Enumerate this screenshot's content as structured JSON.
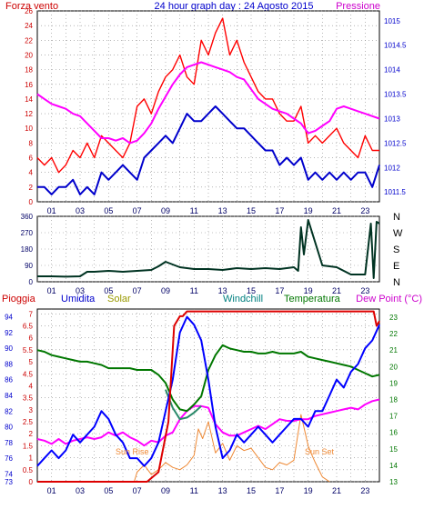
{
  "header": {
    "left_title": "Forza vento",
    "center_title": "24 hour graph day : 24 Agosto 2015",
    "right_title": "Pressione"
  },
  "bottom_header": {
    "pioggia": "Pioggia",
    "umidita": "Umidita",
    "solar": "Solar",
    "windchill": "Windchill",
    "temperatura": "Temperatura",
    "dewpoint": "Dew Point (°C)"
  },
  "annotations": {
    "sunrise": "Sun Rise",
    "sunset": "Sun Set"
  },
  "colors": {
    "wind": "#ff0000",
    "wind_avg": "#0000cc",
    "pressure": "#ff00ff",
    "direction": "#003322",
    "rain": "#dd0000",
    "humidity": "#0000ff",
    "solar": "#ee8833",
    "temperature": "#007700",
    "windchill": "#2a8a6a",
    "dewpoint": "#ff00ff",
    "grid": "#8c8c8c",
    "axis_red": "#cc0000",
    "axis_blue": "#0000cc",
    "axis_green": "#007700",
    "axis_teal": "#008080"
  },
  "chart_data": [
    {
      "type": "line",
      "name": "wind-pressure",
      "x_ticks": [
        "01",
        "03",
        "05",
        "07",
        "09",
        "11",
        "13",
        "15",
        "17",
        "19",
        "21",
        "23"
      ],
      "y_left_ticks": [
        "0",
        "2",
        "4",
        "6",
        "8",
        "10",
        "12",
        "14",
        "16",
        "18",
        "20",
        "22",
        "24",
        "26"
      ],
      "y_left_range": [
        0,
        26
      ],
      "y_right_ticks": [
        "1011.5",
        "1012",
        "1012.5",
        "1013",
        "1013.5",
        "1014",
        "1014.5",
        "1015"
      ],
      "y_right_range": [
        1011.3,
        1015.2
      ],
      "series": [
        {
          "x": [
            0,
            0.5,
            1,
            1.5,
            2,
            2.5,
            3,
            3.5,
            4,
            4.5,
            5,
            5.5,
            6,
            6.5,
            7,
            7.5,
            8,
            8.5,
            9,
            9.5,
            10,
            10.5,
            11,
            11.5,
            12,
            12.5,
            13,
            13.5,
            14,
            14.5,
            15,
            15.5,
            16,
            16.5,
            17,
            17.5,
            18,
            18.5,
            19,
            19.5,
            20,
            20.5,
            21,
            21.5,
            22,
            22.5,
            23,
            23.5,
            24
          ],
          "values": [
            6,
            5,
            6,
            4,
            5,
            7,
            6,
            8,
            6,
            9,
            8,
            7,
            6,
            8,
            13,
            14,
            12,
            15,
            17,
            18,
            20,
            17,
            16,
            22,
            20,
            23,
            25,
            20,
            22,
            19,
            17,
            15,
            14,
            14,
            12,
            11,
            11,
            13,
            8,
            9,
            8,
            9,
            10,
            8,
            7,
            6,
            9,
            7,
            7
          ]
        },
        {
          "x": [
            0,
            0.5,
            1,
            1.5,
            2,
            2.5,
            3,
            3.5,
            4,
            4.5,
            5,
            5.5,
            6,
            6.5,
            7,
            7.5,
            8,
            8.5,
            9,
            9.5,
            10,
            10.5,
            11,
            11.5,
            12,
            12.5,
            13,
            13.5,
            14,
            14.5,
            15,
            15.5,
            16,
            16.5,
            17,
            17.5,
            18,
            18.5,
            19,
            19.5,
            20,
            20.5,
            21,
            21.5,
            22,
            22.5,
            23,
            23.5,
            24
          ],
          "values": [
            2,
            2,
            1,
            2,
            2,
            3,
            1,
            2,
            1,
            4,
            3,
            4,
            5,
            4,
            3,
            6,
            7,
            8,
            9,
            8,
            10,
            12,
            11,
            11,
            12,
            13,
            12,
            11,
            10,
            10,
            9,
            8,
            7,
            7,
            5,
            6,
            5,
            6,
            3,
            4,
            3,
            4,
            3,
            4,
            3,
            4,
            4,
            2,
            5
          ]
        },
        {
          "x": [
            0,
            0.5,
            1,
            1.5,
            2,
            2.5,
            3,
            3.5,
            4,
            4.5,
            5,
            5.5,
            6,
            6.5,
            7,
            7.5,
            8,
            8.5,
            9,
            9.5,
            10,
            10.5,
            11,
            11.5,
            12,
            12.5,
            13,
            13.5,
            14,
            14.5,
            15,
            15.5,
            16,
            16.5,
            17,
            17.5,
            18,
            18.5,
            19,
            19.5,
            20,
            20.5,
            21,
            21.5,
            22,
            22.5,
            23,
            23.5,
            24
          ],
          "values": [
            1013.5,
            1013.4,
            1013.3,
            1013.25,
            1013.2,
            1013.1,
            1013.05,
            1012.9,
            1012.75,
            1012.6,
            1012.6,
            1012.55,
            1012.6,
            1012.5,
            1012.55,
            1012.7,
            1012.9,
            1013.2,
            1013.45,
            1013.7,
            1013.9,
            1014.05,
            1014.1,
            1014.15,
            1014.1,
            1014.05,
            1014.0,
            1013.95,
            1013.85,
            1013.8,
            1013.6,
            1013.4,
            1013.3,
            1013.2,
            1013.15,
            1013.1,
            1013.0,
            1012.9,
            1012.7,
            1012.75,
            1012.85,
            1012.95,
            1013.2,
            1013.25,
            1013.2,
            1013.15,
            1013.1,
            1013.05,
            1013.0
          ]
        }
      ]
    },
    {
      "type": "line",
      "name": "wind-direction",
      "x_ticks": [
        "01",
        "03",
        "05",
        "07",
        "09",
        "11",
        "13",
        "15",
        "17",
        "19",
        "21",
        "23"
      ],
      "y_ticks": [
        "0",
        "90",
        "180",
        "270",
        "360"
      ],
      "y_range": [
        0,
        360
      ],
      "y_right_labels": [
        "N",
        "W",
        "S",
        "E",
        "N"
      ],
      "series": [
        {
          "x": [
            0,
            1,
            2,
            3,
            3.5,
            4,
            5,
            6,
            7,
            8,
            8.5,
            9,
            9.5,
            10,
            11,
            12,
            13,
            14,
            15,
            16,
            17,
            18,
            18.3,
            18.5,
            18.7,
            19,
            20,
            21,
            22,
            23,
            23.4,
            23.6,
            23.8,
            24
          ],
          "values": [
            30,
            30,
            28,
            30,
            55,
            55,
            60,
            55,
            60,
            65,
            85,
            110,
            95,
            80,
            70,
            70,
            65,
            75,
            70,
            75,
            70,
            80,
            60,
            300,
            150,
            340,
            90,
            80,
            40,
            40,
            320,
            20,
            330,
            320
          ]
        }
      ]
    },
    {
      "type": "line",
      "name": "rain-humidity-temperature",
      "x_ticks": [
        "01",
        "03",
        "05",
        "07",
        "09",
        "11",
        "13",
        "15",
        "17",
        "19",
        "21",
        "23"
      ],
      "y_rain_ticks": [
        "0",
        "0.5",
        "1",
        "1.5",
        "2",
        "2.5",
        "3",
        "3.5",
        "4",
        "4.5",
        "5",
        "5.5",
        "6",
        "6.5",
        "7"
      ],
      "y_rain_range": [
        0,
        7.2
      ],
      "y_humidity_ticks": [
        "73",
        "74",
        "76",
        "78",
        "80",
        "82",
        "84",
        "86",
        "88",
        "90",
        "92",
        "94"
      ],
      "y_humidity_range": [
        73,
        95
      ],
      "y_temp_ticks": [
        "13",
        "14",
        "15",
        "16",
        "17",
        "18",
        "19",
        "20",
        "21",
        "22",
        "23"
      ],
      "y_temp_range": [
        13,
        23.5
      ],
      "series": [
        {
          "x": [
            0,
            7.2,
            7.7,
            8.5,
            9.2,
            9.6,
            10,
            10.2,
            10.5,
            23.6,
            23.8,
            24
          ],
          "values": [
            0,
            0,
            0,
            0.4,
            2.5,
            6.5,
            6.9,
            6.9,
            7.1,
            7.1,
            6.5,
            6.7
          ]
        },
        {
          "x": [
            0,
            0.5,
            1,
            1.5,
            2,
            2.5,
            3,
            3.5,
            4,
            4.5,
            5,
            5.5,
            6,
            6.5,
            7,
            7.5,
            8,
            8.5,
            9,
            9.5,
            10,
            10.5,
            11,
            11.5,
            12,
            12.5,
            13,
            13.5,
            14,
            14.5,
            15,
            15.5,
            16,
            16.5,
            17,
            17.5,
            18,
            18.5,
            19,
            19.5,
            20,
            20.5,
            21,
            21.5,
            22,
            22.5,
            23,
            23.5,
            24
          ],
          "values": [
            75,
            76,
            77,
            76,
            77,
            79,
            78,
            79,
            80,
            82,
            81,
            79,
            78,
            76,
            76,
            75,
            76,
            78,
            82,
            86,
            92,
            94,
            93,
            91,
            86,
            80,
            76,
            77,
            79,
            78,
            79,
            80,
            79,
            78,
            79,
            80,
            81,
            81,
            80,
            82,
            82,
            84,
            86,
            85,
            87,
            88,
            90,
            91,
            93
          ]
        },
        {
          "x": [
            0,
            0.5,
            1,
            1.5,
            2,
            2.5,
            3,
            3.5,
            4,
            4.5,
            5,
            5.5,
            6,
            6.5,
            7,
            7.5,
            8,
            8.5,
            9,
            9.5,
            10,
            10.5,
            11,
            11.5,
            12,
            12.5,
            13,
            13.5,
            14,
            14.5,
            15,
            15.5,
            16,
            16.5,
            17,
            17.5,
            18,
            18.5,
            19,
            19.5,
            20,
            20.5,
            21,
            21.5,
            22,
            22.5,
            23,
            23.5,
            24
          ],
          "values": [
            21.0,
            20.9,
            20.7,
            20.6,
            20.5,
            20.4,
            20.3,
            20.3,
            20.2,
            20.1,
            19.9,
            19.9,
            19.9,
            19.9,
            19.8,
            19.8,
            19.8,
            19.5,
            19.0,
            18.0,
            17.4,
            17.3,
            17.7,
            18.2,
            19.8,
            20.7,
            21.3,
            21.1,
            21.0,
            20.9,
            20.9,
            20.8,
            20.8,
            20.9,
            20.8,
            20.8,
            20.8,
            20.9,
            20.6,
            20.5,
            20.4,
            20.3,
            20.2,
            20.1,
            20.0,
            19.8,
            19.6,
            19.4,
            19.5
          ]
        },
        {
          "x": [
            9,
            9.5,
            10,
            10.5,
            11,
            11.5
          ],
          "values": [
            18.6,
            17.5,
            16.8,
            16.9,
            17.2,
            17.6
          ]
        },
        {
          "x": [
            0,
            0.5,
            1,
            1.5,
            2,
            2.5,
            3,
            3.5,
            4,
            4.5,
            5,
            5.5,
            6,
            6.5,
            7,
            7.5,
            8,
            8.5,
            9,
            9.5,
            10,
            10.5,
            11,
            11.5,
            12,
            12.5,
            13,
            13.5,
            14,
            14.5,
            15,
            15.5,
            16,
            16.5,
            17,
            17.5,
            18,
            18.5,
            19,
            19.5,
            20,
            20.5,
            21,
            21.5,
            22,
            22.5,
            23,
            23.5,
            24
          ],
          "values": [
            15.6,
            15.5,
            15.3,
            15.6,
            15.3,
            15.5,
            15.6,
            15.7,
            15.6,
            15.7,
            16.0,
            15.8,
            16.0,
            15.7,
            15.5,
            15.2,
            15.5,
            15.4,
            15.8,
            16.0,
            16.8,
            17.3,
            17.6,
            17.6,
            17.5,
            16.5,
            16.0,
            15.8,
            15.8,
            16.0,
            16.2,
            16.4,
            16.2,
            16.5,
            16.8,
            16.7,
            16.7,
            16.8,
            16.8,
            17.0,
            17.1,
            17.2,
            17.3,
            17.4,
            17.5,
            17.4,
            17.7,
            17.9,
            18.0
          ]
        },
        {
          "x": [
            6.8,
            7,
            7.5,
            8,
            8.5,
            9,
            9.5,
            10,
            10.5,
            11,
            11.3,
            11.6,
            12,
            12.5,
            13,
            13.5,
            14,
            14.5,
            15,
            15.5,
            16,
            16.5,
            17,
            17.5,
            18,
            18.5,
            19,
            19.2,
            19.5,
            20,
            20.5
          ],
          "values": [
            0,
            0.4,
            0.7,
            0.3,
            0.5,
            0.8,
            0.6,
            0.5,
            0.7,
            1.1,
            2.2,
            1.8,
            2.5,
            1.2,
            1.6,
            0.9,
            1.5,
            1.3,
            1.4,
            1.0,
            0.6,
            0.5,
            0.8,
            0.7,
            0.9,
            2.8,
            1.5,
            1.2,
            0.8,
            0.2,
            0
          ]
        }
      ]
    }
  ]
}
